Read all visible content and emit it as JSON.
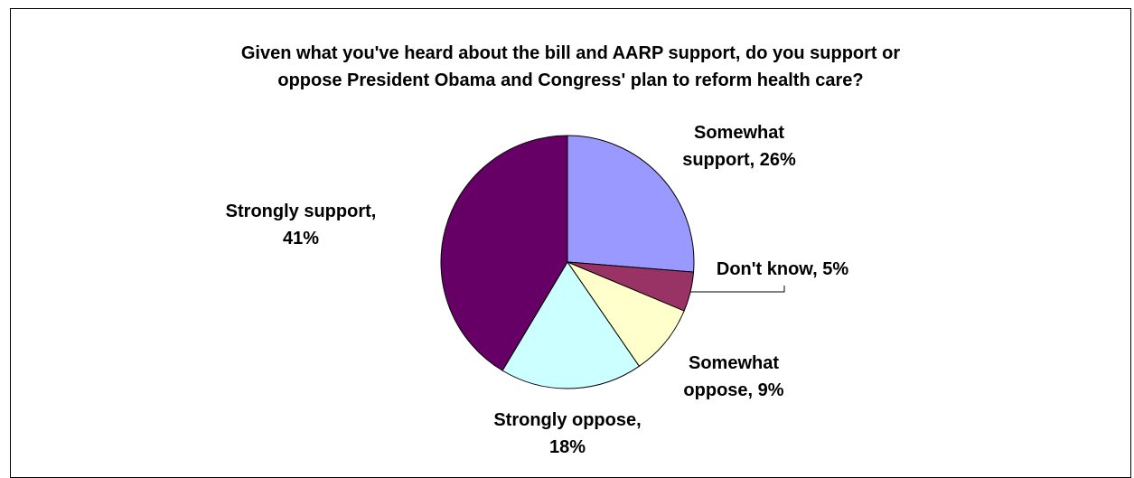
{
  "chart_data": {
    "type": "pie",
    "title_lines": [
      "Given what you've heard about the bill and AARP support, do you support or",
      "oppose President Obama and Congress' plan to reform health care?"
    ],
    "slices": [
      {
        "name": "Somewhat support",
        "value": 26,
        "color": "#9999FF",
        "label_lines": [
          "Somewhat",
          "support, 26%"
        ]
      },
      {
        "name": "Don't know",
        "value": 5,
        "color": "#993366",
        "label_lines": [
          "Don't know, 5%"
        ]
      },
      {
        "name": "Somewhat oppose",
        "value": 9,
        "color": "#FFFFCC",
        "label_lines": [
          "Somewhat",
          "oppose, 9%"
        ]
      },
      {
        "name": "Strongly oppose",
        "value": 18,
        "color": "#CCFFFF",
        "label_lines": [
          "Strongly oppose,",
          "18%"
        ]
      },
      {
        "name": "Strongly support",
        "value": 41,
        "color": "#660066",
        "label_lines": [
          "Strongly support,",
          "41%"
        ]
      }
    ],
    "start": "top",
    "direction": "clockwise",
    "legend": "none",
    "data_labels": "outside"
  }
}
